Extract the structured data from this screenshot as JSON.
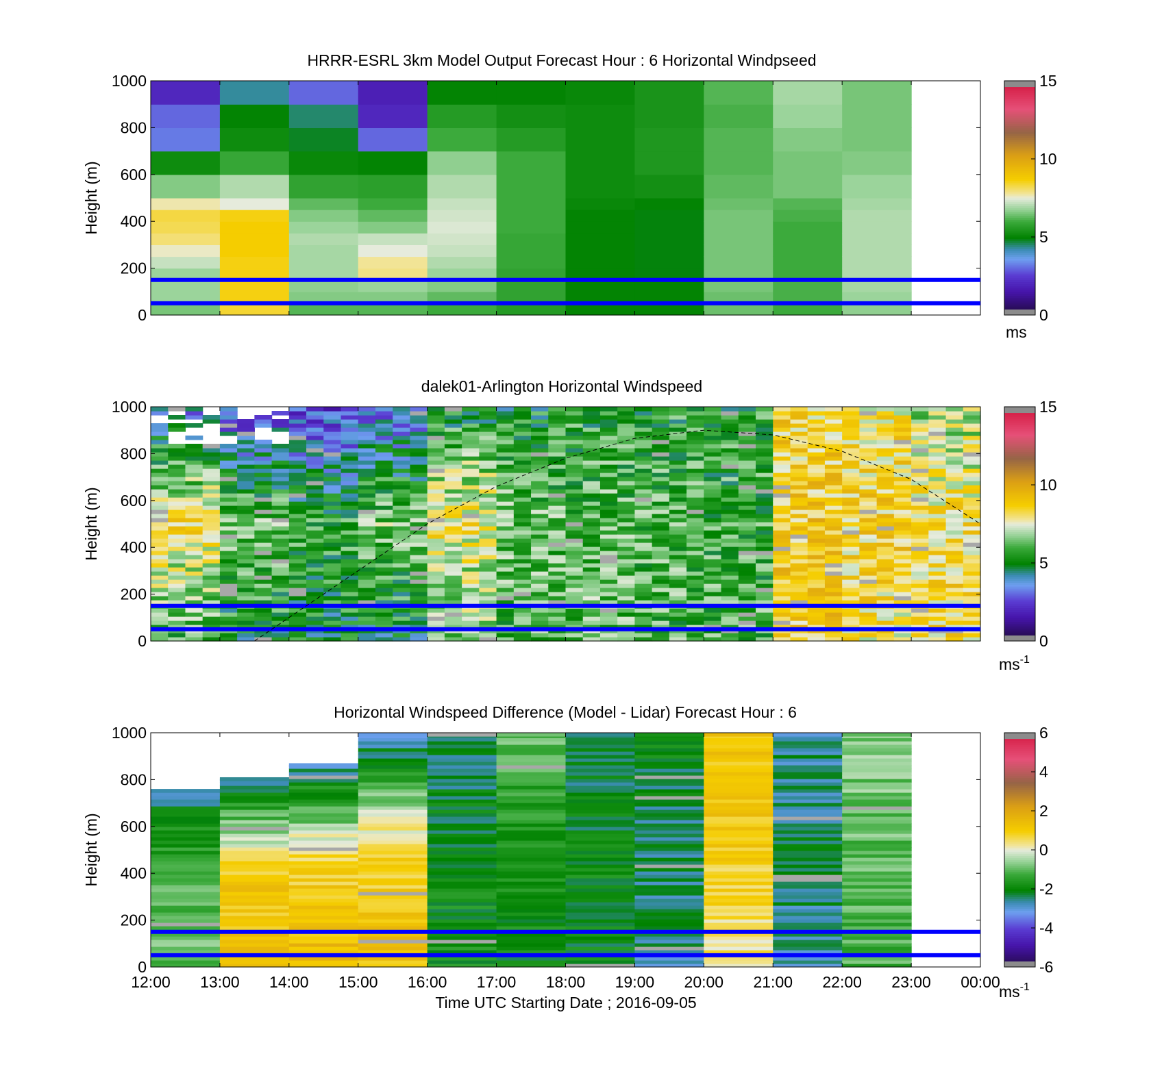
{
  "panels": [
    {
      "title": "HRRR-ESRL 3km Model Output   Forecast Hour : 6 Horizontal Windpseed",
      "ylabel": "Height (m)",
      "y_ticks": [
        "0",
        "200",
        "400",
        "600",
        "800",
        "1000"
      ],
      "colorbar": {
        "ticks": [
          "0",
          "5",
          "10",
          "15"
        ],
        "unit": "ms",
        "unit_sup": ""
      }
    },
    {
      "title": "dalek01-Arlington  Horizontal Windspeed",
      "ylabel": "Height (m)",
      "y_ticks": [
        "0",
        "200",
        "400",
        "600",
        "800",
        "1000"
      ],
      "colorbar": {
        "ticks": [
          "0",
          "5",
          "10",
          "15"
        ],
        "unit": "ms",
        "unit_sup": "-1"
      }
    },
    {
      "title": "Horizontal Windspeed Difference (Model - Lidar) Forecast Hour : 6",
      "ylabel": "Height (m)",
      "y_ticks": [
        "0",
        "200",
        "400",
        "600",
        "800",
        "1000"
      ],
      "colorbar": {
        "ticks": [
          "-6",
          "-4",
          "-2",
          "0",
          "2",
          "4",
          "6"
        ],
        "unit": "ms",
        "unit_sup": "-1"
      }
    }
  ],
  "x_ticks": [
    "12:00",
    "13:00",
    "14:00",
    "15:00",
    "16:00",
    "17:00",
    "18:00",
    "19:00",
    "20:00",
    "21:00",
    "22:00",
    "23:00",
    "00:00"
  ],
  "xlabel": "Time UTC  Starting Date ; 2016-09-05",
  "chart_data": [
    {
      "type": "heatmap",
      "title": "HRRR-ESRL 3km Model Output   Forecast Hour : 6 Horizontal Windpseed",
      "ylabel": "Height (m)",
      "xlim": [
        "12:00",
        "00:00"
      ],
      "ylim": [
        0,
        1000
      ],
      "clim": [
        0,
        15
      ],
      "colorbar_unit": "ms",
      "hours": [
        "12:00",
        "13:00",
        "14:00",
        "15:00",
        "16:00",
        "17:00",
        "18:00",
        "19:00",
        "20:00",
        "21:00",
        "22:00"
      ],
      "height_bins": [
        0,
        50,
        100,
        150,
        200,
        250,
        300,
        350,
        400,
        450,
        500,
        600,
        700,
        800,
        900,
        1000
      ],
      "values": [
        [
          6.5,
          6.8,
          6.8,
          6.8,
          7.2,
          7.6,
          8.0,
          8.2,
          8.3,
          7.7,
          6.6,
          5.2,
          3.2,
          3.0,
          2.0
        ],
        [
          8.4,
          8.6,
          8.6,
          8.6,
          8.6,
          8.7,
          8.7,
          8.7,
          8.6,
          7.5,
          7.0,
          5.9,
          5.2,
          5.0,
          4.3
        ],
        [
          6.2,
          6.6,
          6.7,
          6.9,
          6.9,
          6.9,
          7.0,
          6.8,
          6.6,
          6.3,
          5.8,
          5.1,
          4.8,
          4.5,
          3.0
        ],
        [
          6.2,
          6.6,
          6.8,
          7.9,
          7.8,
          7.5,
          7.2,
          6.6,
          6.3,
          6.0,
          5.7,
          5.0,
          3.0,
          2.0,
          1.8
        ],
        [
          6.0,
          6.3,
          6.6,
          6.8,
          7.0,
          7.2,
          7.3,
          7.4,
          7.3,
          7.2,
          7.0,
          6.7,
          6.0,
          5.6,
          5.0
        ],
        [
          5.6,
          5.8,
          5.8,
          5.8,
          5.9,
          5.9,
          5.9,
          6.0,
          6.0,
          6.0,
          6.0,
          6.0,
          5.6,
          5.3,
          5.0
        ],
        [
          5.0,
          5.0,
          5.0,
          5.0,
          5.0,
          5.0,
          5.0,
          5.0,
          5.0,
          5.1,
          5.2,
          5.2,
          5.2,
          5.2,
          5.1
        ],
        [
          5.0,
          5.0,
          5.0,
          4.9,
          4.9,
          4.9,
          4.9,
          4.9,
          4.9,
          5.0,
          5.3,
          5.5,
          5.5,
          5.4,
          5.4
        ],
        [
          6.4,
          6.4,
          6.5,
          6.5,
          6.5,
          6.5,
          6.5,
          6.5,
          6.5,
          6.4,
          6.3,
          6.2,
          6.2,
          6.1,
          6.2
        ],
        [
          6.0,
          6.1,
          6.1,
          6.0,
          6.0,
          6.0,
          6.0,
          6.0,
          6.1,
          6.2,
          6.5,
          6.5,
          6.6,
          6.8,
          6.9
        ],
        [
          6.7,
          6.8,
          6.9,
          7.0,
          7.0,
          7.0,
          7.0,
          7.0,
          7.0,
          6.9,
          6.8,
          6.6,
          6.5,
          6.5,
          6.5
        ]
      ],
      "reference_lines_m": [
        50,
        150
      ]
    },
    {
      "type": "heatmap",
      "title": "dalek01-Arlington  Horizontal Windspeed",
      "ylabel": "Height (m)",
      "xlim": [
        "12:00",
        "00:00"
      ],
      "ylim": [
        0,
        1000
      ],
      "clim": [
        0,
        15
      ],
      "colorbar_unit": "ms-1",
      "hourly_mean_profile": {
        "hours": [
          "12:00",
          "13:00",
          "14:00",
          "15:00",
          "16:00",
          "17:00",
          "18:00",
          "19:00",
          "20:00",
          "21:00",
          "22:00",
          "23:00"
        ],
        "value_at_0m": [
          6.0,
          5.2,
          5.0,
          5.0,
          6.2,
          6.0,
          6.2,
          6.0,
          6.0,
          8.8,
          8.0,
          8.4
        ],
        "value_at_500m": [
          8.2,
          6.5,
          5.8,
          6.5,
          8.0,
          6.3,
          6.2,
          6.0,
          5.8,
          8.8,
          8.6,
          8.2
        ],
        "value_at_1000m": [
          3.5,
          2.5,
          2.5,
          3.0,
          5.0,
          5.2,
          5.5,
          5.5,
          5.5,
          8.4,
          8.0,
          6.8
        ]
      },
      "reference_lines_m": [
        50,
        150
      ],
      "curve": {
        "style": "dashed",
        "points": [
          [
            "13:30",
            0
          ],
          [
            "14:00",
            100
          ],
          [
            "15:00",
            300
          ],
          [
            "16:00",
            500
          ],
          [
            "17:00",
            660
          ],
          [
            "18:00",
            780
          ],
          [
            "19:00",
            865
          ],
          [
            "20:00",
            900
          ],
          [
            "21:00",
            880
          ],
          [
            "22:00",
            810
          ],
          [
            "23:00",
            690
          ],
          [
            "00:00",
            500
          ]
        ]
      }
    },
    {
      "type": "heatmap",
      "title": "Horizontal Windspeed Difference (Model - Lidar) Forecast Hour : 6",
      "ylabel": "Height (m)",
      "xlabel": "Time UTC  Starting Date ; 2016-09-05",
      "xlim": [
        "12:00",
        "00:00"
      ],
      "ylim": [
        0,
        1000
      ],
      "clim": [
        -6,
        6
      ],
      "colorbar_unit": "ms-1",
      "hours": [
        "12:00",
        "13:00",
        "14:00",
        "15:00",
        "16:00",
        "17:00",
        "18:00",
        "19:00",
        "20:00",
        "21:00",
        "22:00"
      ],
      "profile_top_m": [
        760,
        810,
        870,
        1000,
        1000,
        1000,
        1000,
        1000,
        1000,
        1000,
        1000
      ],
      "value_at_0m": [
        -1.0,
        1.3,
        1.5,
        1.3,
        -1.8,
        -2.0,
        -2.0,
        -2.6,
        0.3,
        -2.6,
        -1.2
      ],
      "value_at_mid": [
        -1.0,
        1.0,
        0.8,
        0.8,
        -2.0,
        -1.8,
        -2.0,
        -2.4,
        1.0,
        -2.4,
        -1.0
      ],
      "value_at_top": [
        -2.6,
        -2.6,
        -2.8,
        -3.0,
        -2.4,
        -1.0,
        -2.4,
        -2.0,
        1.2,
        -2.6,
        -0.6
      ],
      "reference_lines_m": [
        50,
        150
      ]
    }
  ]
}
